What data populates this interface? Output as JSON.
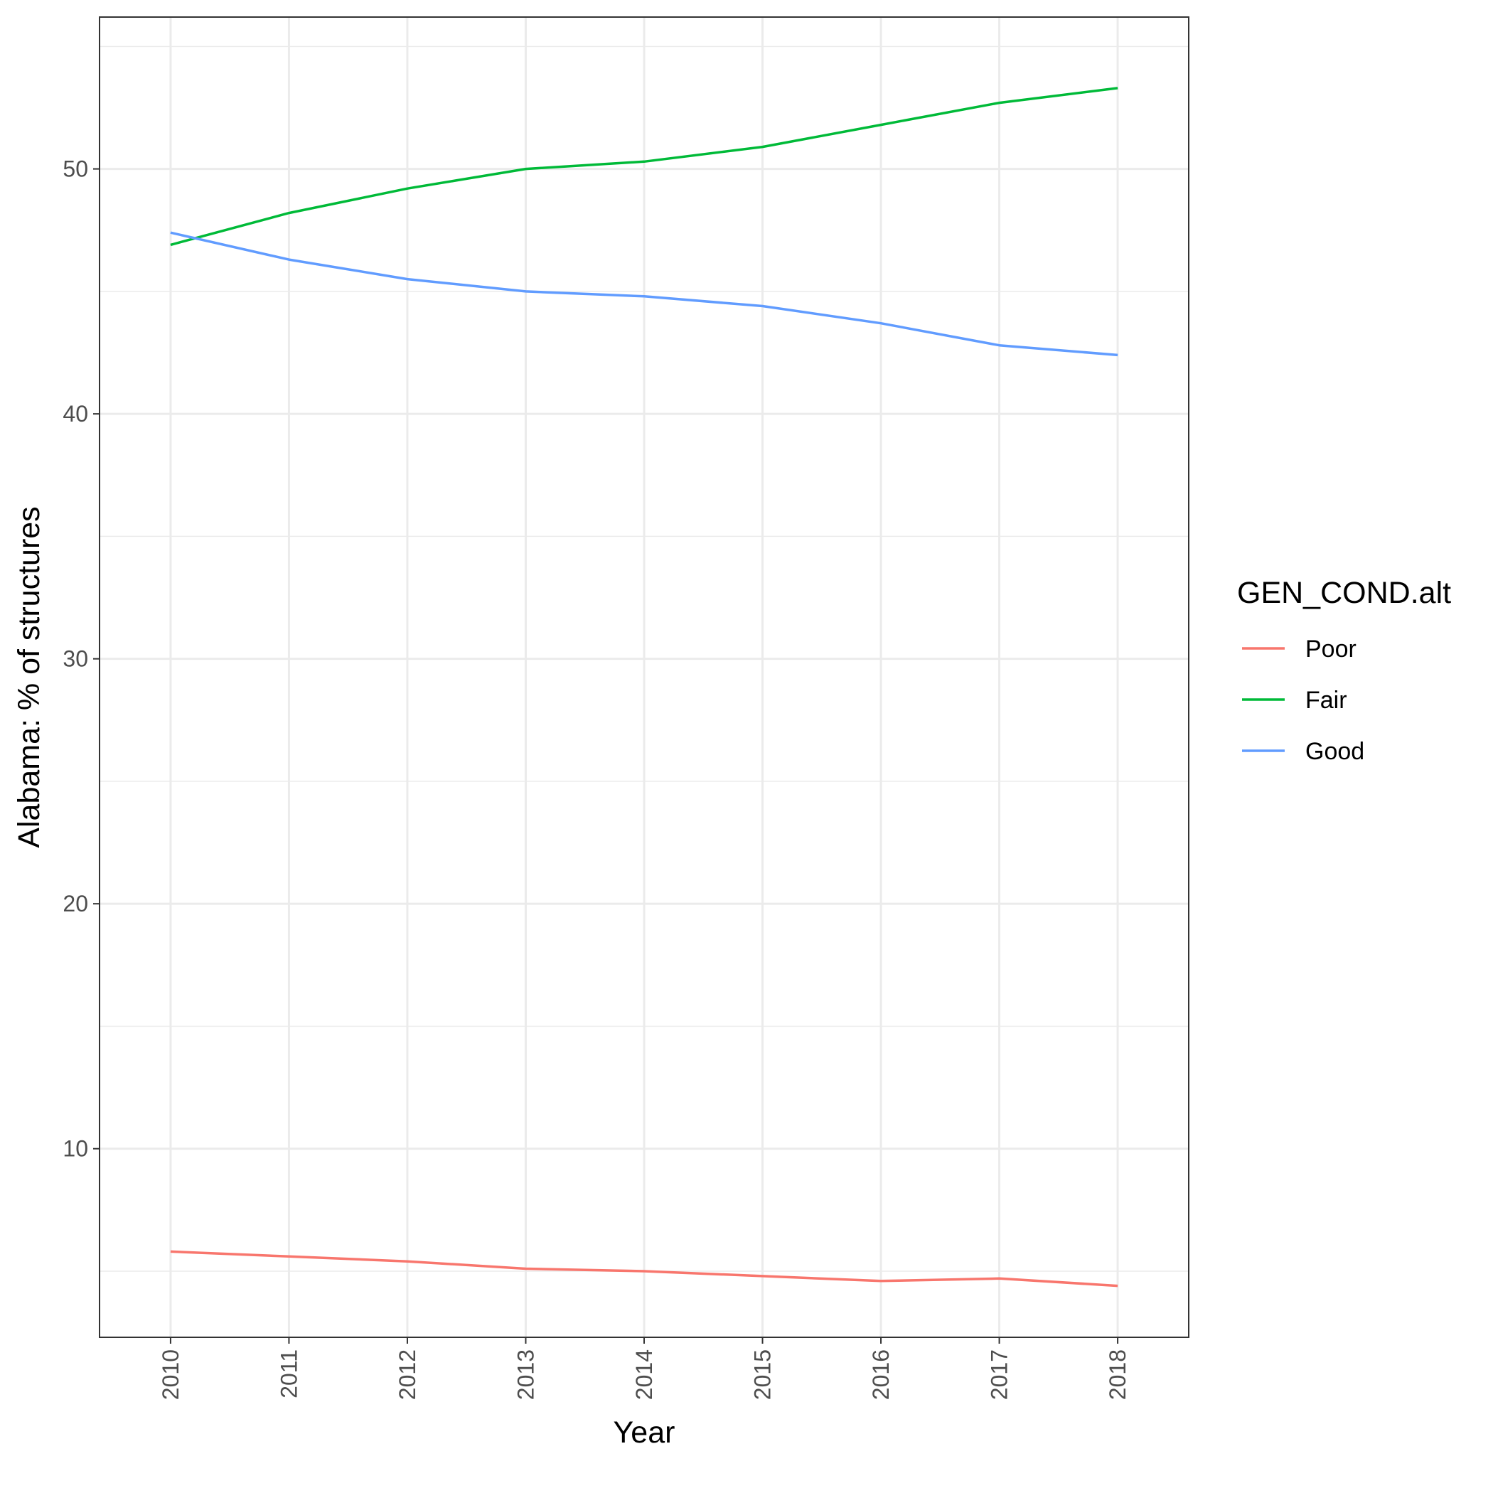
{
  "chart_data": {
    "type": "line",
    "title": "",
    "xlabel": "Year",
    "ylabel": "Alabama: % of structures",
    "x": [
      2010,
      2011,
      2012,
      2013,
      2014,
      2015,
      2016,
      2017,
      2018
    ],
    "x_tick_labels": [
      "2010",
      "2011",
      "2012",
      "2013",
      "2014",
      "2015",
      "2016",
      "2017",
      "2018"
    ],
    "y_ticks": [
      10,
      20,
      30,
      40,
      50
    ],
    "y_tick_labels": [
      "10",
      "20",
      "30",
      "40",
      "50"
    ],
    "xlim": [
      2009.4,
      2018.6
    ],
    "ylim": [
      2.3,
      56.2
    ],
    "grid": true,
    "legend": {
      "title": "GEN_COND.alt",
      "position": "right"
    },
    "series": [
      {
        "name": "Poor",
        "color": "#F8766D",
        "values": [
          5.8,
          5.6,
          5.4,
          5.1,
          5.0,
          4.8,
          4.6,
          4.7,
          4.4
        ]
      },
      {
        "name": "Fair",
        "color": "#00BA38",
        "values": [
          46.9,
          48.2,
          49.2,
          50.0,
          50.3,
          50.9,
          51.8,
          52.7,
          53.3
        ]
      },
      {
        "name": "Good",
        "color": "#619CFF",
        "values": [
          47.4,
          46.3,
          45.5,
          45.0,
          44.8,
          44.4,
          43.7,
          42.8,
          42.4
        ]
      }
    ]
  }
}
